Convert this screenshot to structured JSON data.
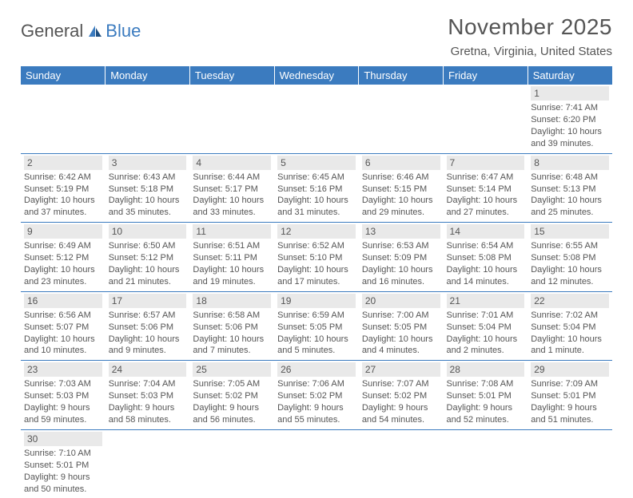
{
  "logo": {
    "text1": "General",
    "text2": "Blue"
  },
  "title": "November 2025",
  "location": "Gretna, Virginia, United States",
  "colors": {
    "header_bg": "#3b7bbf",
    "header_fg": "#ffffff",
    "daynum_bg": "#e9e9e9",
    "row_sep": "#3b7bbf",
    "text": "#555555",
    "background": "#ffffff"
  },
  "day_headers": [
    "Sunday",
    "Monday",
    "Tuesday",
    "Wednesday",
    "Thursday",
    "Friday",
    "Saturday"
  ],
  "weeks": [
    [
      null,
      null,
      null,
      null,
      null,
      null,
      {
        "n": "1",
        "sunrise": "Sunrise: 7:41 AM",
        "sunset": "Sunset: 6:20 PM",
        "daylight": "Daylight: 10 hours and 39 minutes."
      }
    ],
    [
      {
        "n": "2",
        "sunrise": "Sunrise: 6:42 AM",
        "sunset": "Sunset: 5:19 PM",
        "daylight": "Daylight: 10 hours and 37 minutes."
      },
      {
        "n": "3",
        "sunrise": "Sunrise: 6:43 AM",
        "sunset": "Sunset: 5:18 PM",
        "daylight": "Daylight: 10 hours and 35 minutes."
      },
      {
        "n": "4",
        "sunrise": "Sunrise: 6:44 AM",
        "sunset": "Sunset: 5:17 PM",
        "daylight": "Daylight: 10 hours and 33 minutes."
      },
      {
        "n": "5",
        "sunrise": "Sunrise: 6:45 AM",
        "sunset": "Sunset: 5:16 PM",
        "daylight": "Daylight: 10 hours and 31 minutes."
      },
      {
        "n": "6",
        "sunrise": "Sunrise: 6:46 AM",
        "sunset": "Sunset: 5:15 PM",
        "daylight": "Daylight: 10 hours and 29 minutes."
      },
      {
        "n": "7",
        "sunrise": "Sunrise: 6:47 AM",
        "sunset": "Sunset: 5:14 PM",
        "daylight": "Daylight: 10 hours and 27 minutes."
      },
      {
        "n": "8",
        "sunrise": "Sunrise: 6:48 AM",
        "sunset": "Sunset: 5:13 PM",
        "daylight": "Daylight: 10 hours and 25 minutes."
      }
    ],
    [
      {
        "n": "9",
        "sunrise": "Sunrise: 6:49 AM",
        "sunset": "Sunset: 5:12 PM",
        "daylight": "Daylight: 10 hours and 23 minutes."
      },
      {
        "n": "10",
        "sunrise": "Sunrise: 6:50 AM",
        "sunset": "Sunset: 5:12 PM",
        "daylight": "Daylight: 10 hours and 21 minutes."
      },
      {
        "n": "11",
        "sunrise": "Sunrise: 6:51 AM",
        "sunset": "Sunset: 5:11 PM",
        "daylight": "Daylight: 10 hours and 19 minutes."
      },
      {
        "n": "12",
        "sunrise": "Sunrise: 6:52 AM",
        "sunset": "Sunset: 5:10 PM",
        "daylight": "Daylight: 10 hours and 17 minutes."
      },
      {
        "n": "13",
        "sunrise": "Sunrise: 6:53 AM",
        "sunset": "Sunset: 5:09 PM",
        "daylight": "Daylight: 10 hours and 16 minutes."
      },
      {
        "n": "14",
        "sunrise": "Sunrise: 6:54 AM",
        "sunset": "Sunset: 5:08 PM",
        "daylight": "Daylight: 10 hours and 14 minutes."
      },
      {
        "n": "15",
        "sunrise": "Sunrise: 6:55 AM",
        "sunset": "Sunset: 5:08 PM",
        "daylight": "Daylight: 10 hours and 12 minutes."
      }
    ],
    [
      {
        "n": "16",
        "sunrise": "Sunrise: 6:56 AM",
        "sunset": "Sunset: 5:07 PM",
        "daylight": "Daylight: 10 hours and 10 minutes."
      },
      {
        "n": "17",
        "sunrise": "Sunrise: 6:57 AM",
        "sunset": "Sunset: 5:06 PM",
        "daylight": "Daylight: 10 hours and 9 minutes."
      },
      {
        "n": "18",
        "sunrise": "Sunrise: 6:58 AM",
        "sunset": "Sunset: 5:06 PM",
        "daylight": "Daylight: 10 hours and 7 minutes."
      },
      {
        "n": "19",
        "sunrise": "Sunrise: 6:59 AM",
        "sunset": "Sunset: 5:05 PM",
        "daylight": "Daylight: 10 hours and 5 minutes."
      },
      {
        "n": "20",
        "sunrise": "Sunrise: 7:00 AM",
        "sunset": "Sunset: 5:05 PM",
        "daylight": "Daylight: 10 hours and 4 minutes."
      },
      {
        "n": "21",
        "sunrise": "Sunrise: 7:01 AM",
        "sunset": "Sunset: 5:04 PM",
        "daylight": "Daylight: 10 hours and 2 minutes."
      },
      {
        "n": "22",
        "sunrise": "Sunrise: 7:02 AM",
        "sunset": "Sunset: 5:04 PM",
        "daylight": "Daylight: 10 hours and 1 minute."
      }
    ],
    [
      {
        "n": "23",
        "sunrise": "Sunrise: 7:03 AM",
        "sunset": "Sunset: 5:03 PM",
        "daylight": "Daylight: 9 hours and 59 minutes."
      },
      {
        "n": "24",
        "sunrise": "Sunrise: 7:04 AM",
        "sunset": "Sunset: 5:03 PM",
        "daylight": "Daylight: 9 hours and 58 minutes."
      },
      {
        "n": "25",
        "sunrise": "Sunrise: 7:05 AM",
        "sunset": "Sunset: 5:02 PM",
        "daylight": "Daylight: 9 hours and 56 minutes."
      },
      {
        "n": "26",
        "sunrise": "Sunrise: 7:06 AM",
        "sunset": "Sunset: 5:02 PM",
        "daylight": "Daylight: 9 hours and 55 minutes."
      },
      {
        "n": "27",
        "sunrise": "Sunrise: 7:07 AM",
        "sunset": "Sunset: 5:02 PM",
        "daylight": "Daylight: 9 hours and 54 minutes."
      },
      {
        "n": "28",
        "sunrise": "Sunrise: 7:08 AM",
        "sunset": "Sunset: 5:01 PM",
        "daylight": "Daylight: 9 hours and 52 minutes."
      },
      {
        "n": "29",
        "sunrise": "Sunrise: 7:09 AM",
        "sunset": "Sunset: 5:01 PM",
        "daylight": "Daylight: 9 hours and 51 minutes."
      }
    ],
    [
      {
        "n": "30",
        "sunrise": "Sunrise: 7:10 AM",
        "sunset": "Sunset: 5:01 PM",
        "daylight": "Daylight: 9 hours and 50 minutes."
      },
      null,
      null,
      null,
      null,
      null,
      null
    ]
  ]
}
